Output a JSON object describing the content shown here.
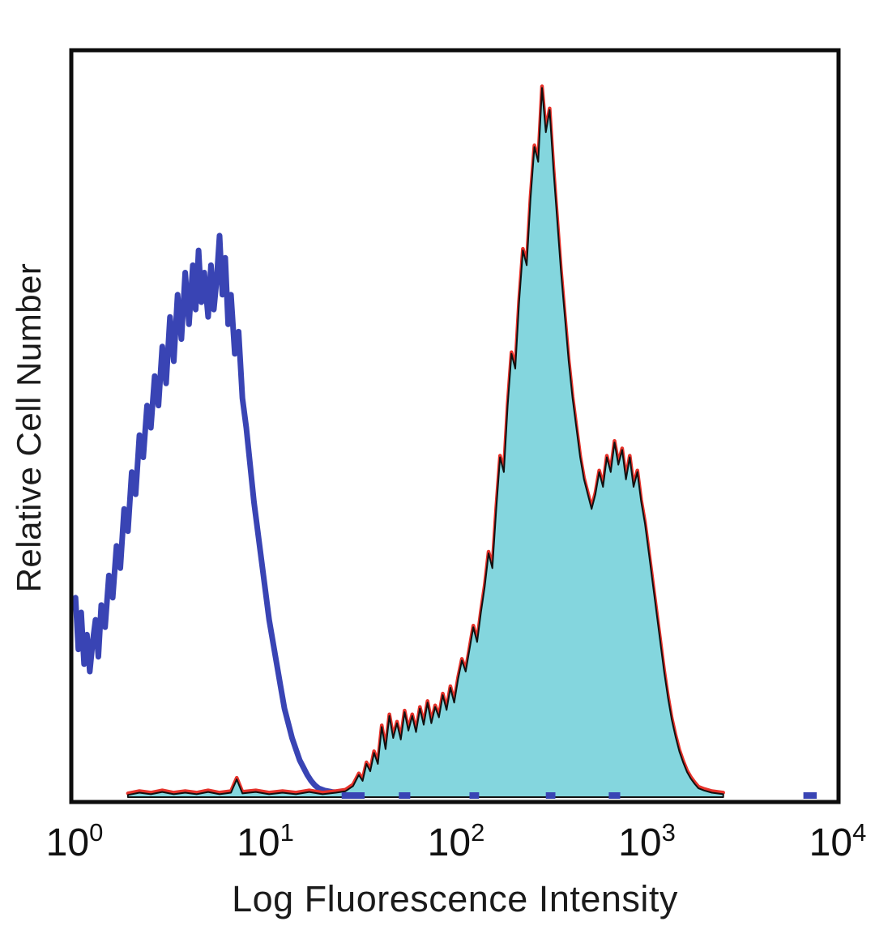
{
  "chart_data": {
    "type": "line",
    "variant": "flow-cytometry-overlay-histogram",
    "title": "",
    "xlabel": "Log Fluorescence Intensity",
    "ylabel": "Relative Cell Number",
    "x_scale": "log10",
    "xlim_log10": [
      0,
      4
    ],
    "ylim": [
      0,
      1
    ],
    "grid": false,
    "legend": "none",
    "axis_color": "#0d0d0d",
    "tick_label_color": "#111111",
    "points_format": "[log10_x, relative_height_0_to_1]",
    "x_ticks": [
      {
        "value": 0,
        "base": "10",
        "exp": "0"
      },
      {
        "value": 1,
        "base": "10",
        "exp": "1"
      },
      {
        "value": 2,
        "base": "10",
        "exp": "2"
      },
      {
        "value": 3,
        "base": "10",
        "exp": "3"
      },
      {
        "value": 4,
        "base": "10",
        "exp": "4"
      }
    ],
    "series": [
      {
        "name": "unstained-control-open-histogram",
        "draw": "open-line",
        "color": "#3944b4",
        "width": 7,
        "peak_log10_x": 0.76,
        "peak_height": 0.76,
        "points": [
          [
            0.005,
            0.27
          ],
          [
            0.02,
            0.2
          ],
          [
            0.035,
            0.25
          ],
          [
            0.05,
            0.18
          ],
          [
            0.065,
            0.22
          ],
          [
            0.08,
            0.17
          ],
          [
            0.095,
            0.21
          ],
          [
            0.11,
            0.24
          ],
          [
            0.125,
            0.19
          ],
          [
            0.14,
            0.26
          ],
          [
            0.16,
            0.23
          ],
          [
            0.18,
            0.3
          ],
          [
            0.2,
            0.27
          ],
          [
            0.22,
            0.34
          ],
          [
            0.24,
            0.31
          ],
          [
            0.26,
            0.39
          ],
          [
            0.28,
            0.36
          ],
          [
            0.3,
            0.44
          ],
          [
            0.32,
            0.41
          ],
          [
            0.34,
            0.49
          ],
          [
            0.36,
            0.46
          ],
          [
            0.38,
            0.53
          ],
          [
            0.4,
            0.5
          ],
          [
            0.42,
            0.57
          ],
          [
            0.44,
            0.53
          ],
          [
            0.46,
            0.61
          ],
          [
            0.48,
            0.56
          ],
          [
            0.5,
            0.65
          ],
          [
            0.52,
            0.59
          ],
          [
            0.54,
            0.68
          ],
          [
            0.56,
            0.62
          ],
          [
            0.58,
            0.71
          ],
          [
            0.6,
            0.64
          ],
          [
            0.62,
            0.72
          ],
          [
            0.635,
            0.66
          ],
          [
            0.65,
            0.74
          ],
          [
            0.665,
            0.67
          ],
          [
            0.68,
            0.71
          ],
          [
            0.7,
            0.65
          ],
          [
            0.715,
            0.72
          ],
          [
            0.73,
            0.66
          ],
          [
            0.745,
            0.7
          ],
          [
            0.76,
            0.76
          ],
          [
            0.775,
            0.68
          ],
          [
            0.79,
            0.73
          ],
          [
            0.805,
            0.64
          ],
          [
            0.82,
            0.68
          ],
          [
            0.84,
            0.6
          ],
          [
            0.86,
            0.63
          ],
          [
            0.88,
            0.54
          ],
          [
            0.9,
            0.5
          ],
          [
            0.92,
            0.45
          ],
          [
            0.94,
            0.4
          ],
          [
            0.96,
            0.36
          ],
          [
            0.98,
            0.32
          ],
          [
            1.0,
            0.28
          ],
          [
            1.02,
            0.24
          ],
          [
            1.04,
            0.21
          ],
          [
            1.06,
            0.18
          ],
          [
            1.08,
            0.15
          ],
          [
            1.1,
            0.12
          ],
          [
            1.12,
            0.1
          ],
          [
            1.14,
            0.08
          ],
          [
            1.16,
            0.065
          ],
          [
            1.18,
            0.05
          ],
          [
            1.2,
            0.04
          ],
          [
            1.22,
            0.03
          ],
          [
            1.24,
            0.022
          ],
          [
            1.26,
            0.016
          ],
          [
            1.28,
            0.012
          ],
          [
            1.31,
            0.009
          ],
          [
            1.35,
            0.007
          ],
          [
            1.4,
            0.006
          ],
          [
            1.46,
            0.005
          ]
        ]
      },
      {
        "name": "stained-sample-filled-histogram",
        "draw": "filled-line",
        "fill": "#84d6de",
        "stroke": "#101010",
        "stroke_width": 2,
        "outline_color": "#e6322a",
        "outline_width": 4.5,
        "outline_dy": -2,
        "main_peak_log10_x": 2.45,
        "main_peak_height": 0.96,
        "second_peak_log10_x": 2.87,
        "second_peak_height": 0.48,
        "points": [
          [
            0.28,
            0.003
          ],
          [
            0.34,
            0.006
          ],
          [
            0.4,
            0.004
          ],
          [
            0.46,
            0.007
          ],
          [
            0.52,
            0.004
          ],
          [
            0.58,
            0.006
          ],
          [
            0.64,
            0.004
          ],
          [
            0.7,
            0.007
          ],
          [
            0.76,
            0.004
          ],
          [
            0.82,
            0.006
          ],
          [
            0.85,
            0.024
          ],
          [
            0.88,
            0.005
          ],
          [
            0.95,
            0.007
          ],
          [
            1.02,
            0.004
          ],
          [
            1.09,
            0.006
          ],
          [
            1.16,
            0.004
          ],
          [
            1.23,
            0.007
          ],
          [
            1.3,
            0.004
          ],
          [
            1.37,
            0.006
          ],
          [
            1.42,
            0.008
          ],
          [
            1.46,
            0.015
          ],
          [
            1.49,
            0.03
          ],
          [
            1.51,
            0.022
          ],
          [
            1.53,
            0.045
          ],
          [
            1.55,
            0.035
          ],
          [
            1.57,
            0.06
          ],
          [
            1.59,
            0.045
          ],
          [
            1.61,
            0.095
          ],
          [
            1.63,
            0.065
          ],
          [
            1.65,
            0.11
          ],
          [
            1.67,
            0.08
          ],
          [
            1.69,
            0.1
          ],
          [
            1.71,
            0.078
          ],
          [
            1.73,
            0.115
          ],
          [
            1.75,
            0.09
          ],
          [
            1.77,
            0.11
          ],
          [
            1.79,
            0.088
          ],
          [
            1.81,
            0.12
          ],
          [
            1.83,
            0.098
          ],
          [
            1.85,
            0.128
          ],
          [
            1.87,
            0.1
          ],
          [
            1.89,
            0.122
          ],
          [
            1.91,
            0.108
          ],
          [
            1.93,
            0.138
          ],
          [
            1.95,
            0.118
          ],
          [
            1.97,
            0.148
          ],
          [
            1.99,
            0.128
          ],
          [
            2.01,
            0.16
          ],
          [
            2.03,
            0.185
          ],
          [
            2.05,
            0.17
          ],
          [
            2.07,
            0.2
          ],
          [
            2.09,
            0.23
          ],
          [
            2.11,
            0.21
          ],
          [
            2.13,
            0.25
          ],
          [
            2.15,
            0.285
          ],
          [
            2.17,
            0.33
          ],
          [
            2.19,
            0.31
          ],
          [
            2.21,
            0.39
          ],
          [
            2.23,
            0.46
          ],
          [
            2.25,
            0.44
          ],
          [
            2.27,
            0.53
          ],
          [
            2.29,
            0.6
          ],
          [
            2.31,
            0.58
          ],
          [
            2.33,
            0.67
          ],
          [
            2.35,
            0.74
          ],
          [
            2.37,
            0.72
          ],
          [
            2.39,
            0.81
          ],
          [
            2.41,
            0.88
          ],
          [
            2.43,
            0.86
          ],
          [
            2.45,
            0.96
          ],
          [
            2.47,
            0.9
          ],
          [
            2.49,
            0.93
          ],
          [
            2.51,
            0.85
          ],
          [
            2.53,
            0.78
          ],
          [
            2.55,
            0.71
          ],
          [
            2.57,
            0.65
          ],
          [
            2.59,
            0.59
          ],
          [
            2.61,
            0.54
          ],
          [
            2.63,
            0.5
          ],
          [
            2.65,
            0.46
          ],
          [
            2.67,
            0.43
          ],
          [
            2.69,
            0.41
          ],
          [
            2.71,
            0.39
          ],
          [
            2.73,
            0.41
          ],
          [
            2.75,
            0.44
          ],
          [
            2.77,
            0.42
          ],
          [
            2.79,
            0.46
          ],
          [
            2.81,
            0.44
          ],
          [
            2.83,
            0.48
          ],
          [
            2.85,
            0.45
          ],
          [
            2.87,
            0.47
          ],
          [
            2.89,
            0.43
          ],
          [
            2.91,
            0.46
          ],
          [
            2.93,
            0.42
          ],
          [
            2.95,
            0.44
          ],
          [
            2.97,
            0.4
          ],
          [
            2.99,
            0.37
          ],
          [
            3.01,
            0.33
          ],
          [
            3.03,
            0.29
          ],
          [
            3.05,
            0.25
          ],
          [
            3.07,
            0.21
          ],
          [
            3.09,
            0.17
          ],
          [
            3.11,
            0.135
          ],
          [
            3.13,
            0.105
          ],
          [
            3.15,
            0.082
          ],
          [
            3.17,
            0.062
          ],
          [
            3.19,
            0.047
          ],
          [
            3.21,
            0.034
          ],
          [
            3.23,
            0.025
          ],
          [
            3.25,
            0.018
          ],
          [
            3.27,
            0.012
          ],
          [
            3.3,
            0.009
          ],
          [
            3.34,
            0.006
          ],
          [
            3.4,
            0.004
          ]
        ]
      }
    ],
    "baseline_marks": {
      "series": "unstained-control-open-histogram",
      "color": "#3944b4",
      "thickness": 8,
      "height": 0.012,
      "spans_log10": [
        [
          1.4,
          1.52
        ],
        [
          1.7,
          1.76
        ],
        [
          2.07,
          2.12
        ],
        [
          2.47,
          2.52
        ],
        [
          2.8,
          2.86
        ],
        [
          3.82,
          3.89
        ]
      ]
    }
  }
}
